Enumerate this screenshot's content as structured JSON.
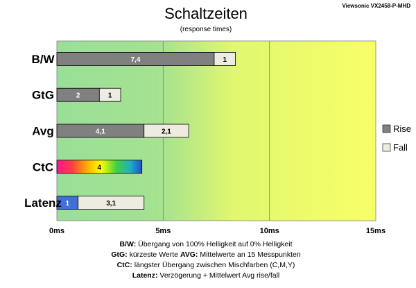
{
  "chart_data": {
    "type": "bar",
    "orientation": "horizontal",
    "stacked": true,
    "title": "Schaltzeiten",
    "subtitle": "(response times)",
    "model": "Viewsonic VX2458-P-MHD",
    "categories": [
      "B/W",
      "GtG",
      "Avg",
      "CtC",
      "Latenz"
    ],
    "series": [
      {
        "name": "Rise",
        "color": "#808080",
        "values": [
          7.4,
          2,
          4.1,
          null,
          1
        ],
        "labels": [
          "7,4",
          "2",
          "4,1",
          "",
          "1"
        ]
      },
      {
        "name": "Fall",
        "color": "#eeece1",
        "values": [
          1,
          1,
          2.1,
          null,
          3.1
        ],
        "labels": [
          "1",
          "1",
          "2,1",
          "",
          "3,1"
        ]
      },
      {
        "name": "",
        "color": "rainbow",
        "values": [
          null,
          null,
          null,
          4,
          null
        ],
        "labels": [
          "",
          "",
          "",
          "4",
          ""
        ]
      }
    ],
    "latenz_bar_color": "#3f6fd8",
    "xlim": [
      0,
      15
    ],
    "xticks": [
      0,
      5,
      10,
      15
    ],
    "xtick_labels": [
      "0ms",
      "5ms",
      "10ms",
      "15ms"
    ],
    "legend": {
      "placement": "right",
      "entries": [
        {
          "label": "Rise",
          "color": "#808080"
        },
        {
          "label": "Fall",
          "color": "#eeece1"
        }
      ]
    },
    "background_gradient": [
      "#99df99",
      "#f4ff6a"
    ],
    "footnotes": [
      {
        "key": "B/W",
        "text": "Übergang von 100% Helligkeit auf 0% Helligkeit"
      },
      {
        "key": "GtG",
        "text": "kürzeste Werte",
        "key2": "AVG",
        "text2": "Mittelwerte an 15 Messpunkten"
      },
      {
        "key": "CtC",
        "text": "längster Übergang zwischen Mischfarben (C,M,Y)"
      },
      {
        "key": "Latenz",
        "text": "Verzögerung + Mittelwert Avg rise/fall"
      }
    ]
  }
}
